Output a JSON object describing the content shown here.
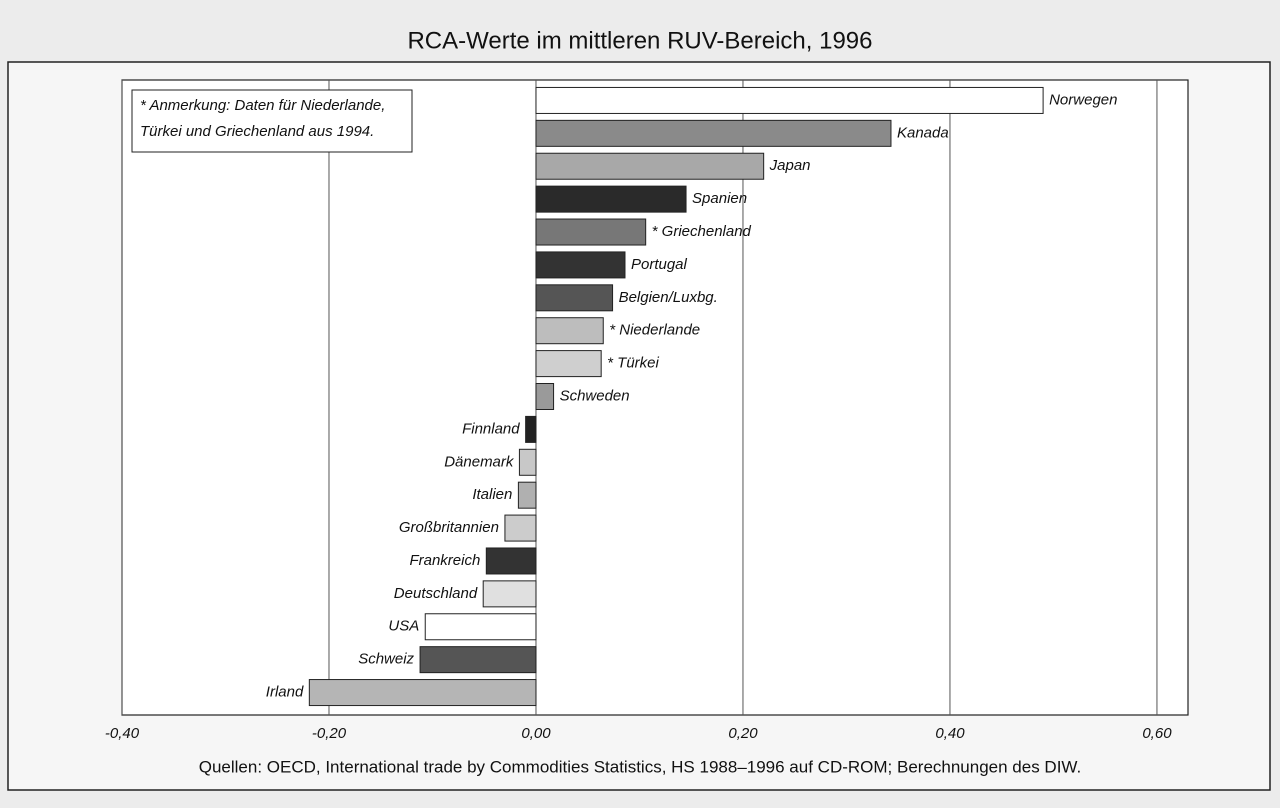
{
  "chart_data": {
    "type": "barh",
    "title": "RCA-Werte im mittleren RUV-Bereich, 1996",
    "annotation": [
      "* Anmerkung: Daten für Niederlande,",
      "Türkei und Griechenland aus 1994."
    ],
    "source": "Quellen: OECD, International trade by Commodities Statistics, HS 1988–1996 auf CD-ROM; Berechnungen des DIW.",
    "categories": [
      "Norwegen",
      "Kanada",
      "Japan",
      "Spanien",
      "* Griechenland",
      "Portugal",
      "Belgien/Luxbg.",
      "* Niederlande",
      "* Türkei",
      "Schweden",
      "Finnland",
      "Dänemark",
      "Italien",
      "Großbritannien",
      "Frankreich",
      "Deutschland",
      "USA",
      "Schweiz",
      "Irland"
    ],
    "values": [
      0.49,
      0.343,
      0.22,
      0.145,
      0.106,
      0.086,
      0.074,
      0.065,
      0.063,
      0.017,
      -0.01,
      -0.016,
      -0.017,
      -0.03,
      -0.048,
      -0.051,
      -0.107,
      -0.112,
      -0.219
    ],
    "colors": [
      "#ffffff",
      "#8a8a8a",
      "#a8a8a8",
      "#2a2a2a",
      "#777777",
      "#333333",
      "#555555",
      "#bdbdbd",
      "#cfcfcf",
      "#9a9a9a",
      "#222222",
      "#c8c8c8",
      "#b0b0b0",
      "#cccccc",
      "#333333",
      "#e0e0e0",
      "#ffffff",
      "#555555",
      "#b5b5b5"
    ],
    "xlim": [
      -0.4,
      0.63
    ],
    "xticks": [
      {
        "value": -0.4,
        "label": "-0,40"
      },
      {
        "value": -0.2,
        "label": "-0,20"
      },
      {
        "value": 0,
        "label": "0,00"
      },
      {
        "value": 0.2,
        "label": "0,20"
      },
      {
        "value": 0.4,
        "label": "0,40"
      },
      {
        "value": 0.6,
        "label": "0,60"
      }
    ],
    "grid": true
  }
}
